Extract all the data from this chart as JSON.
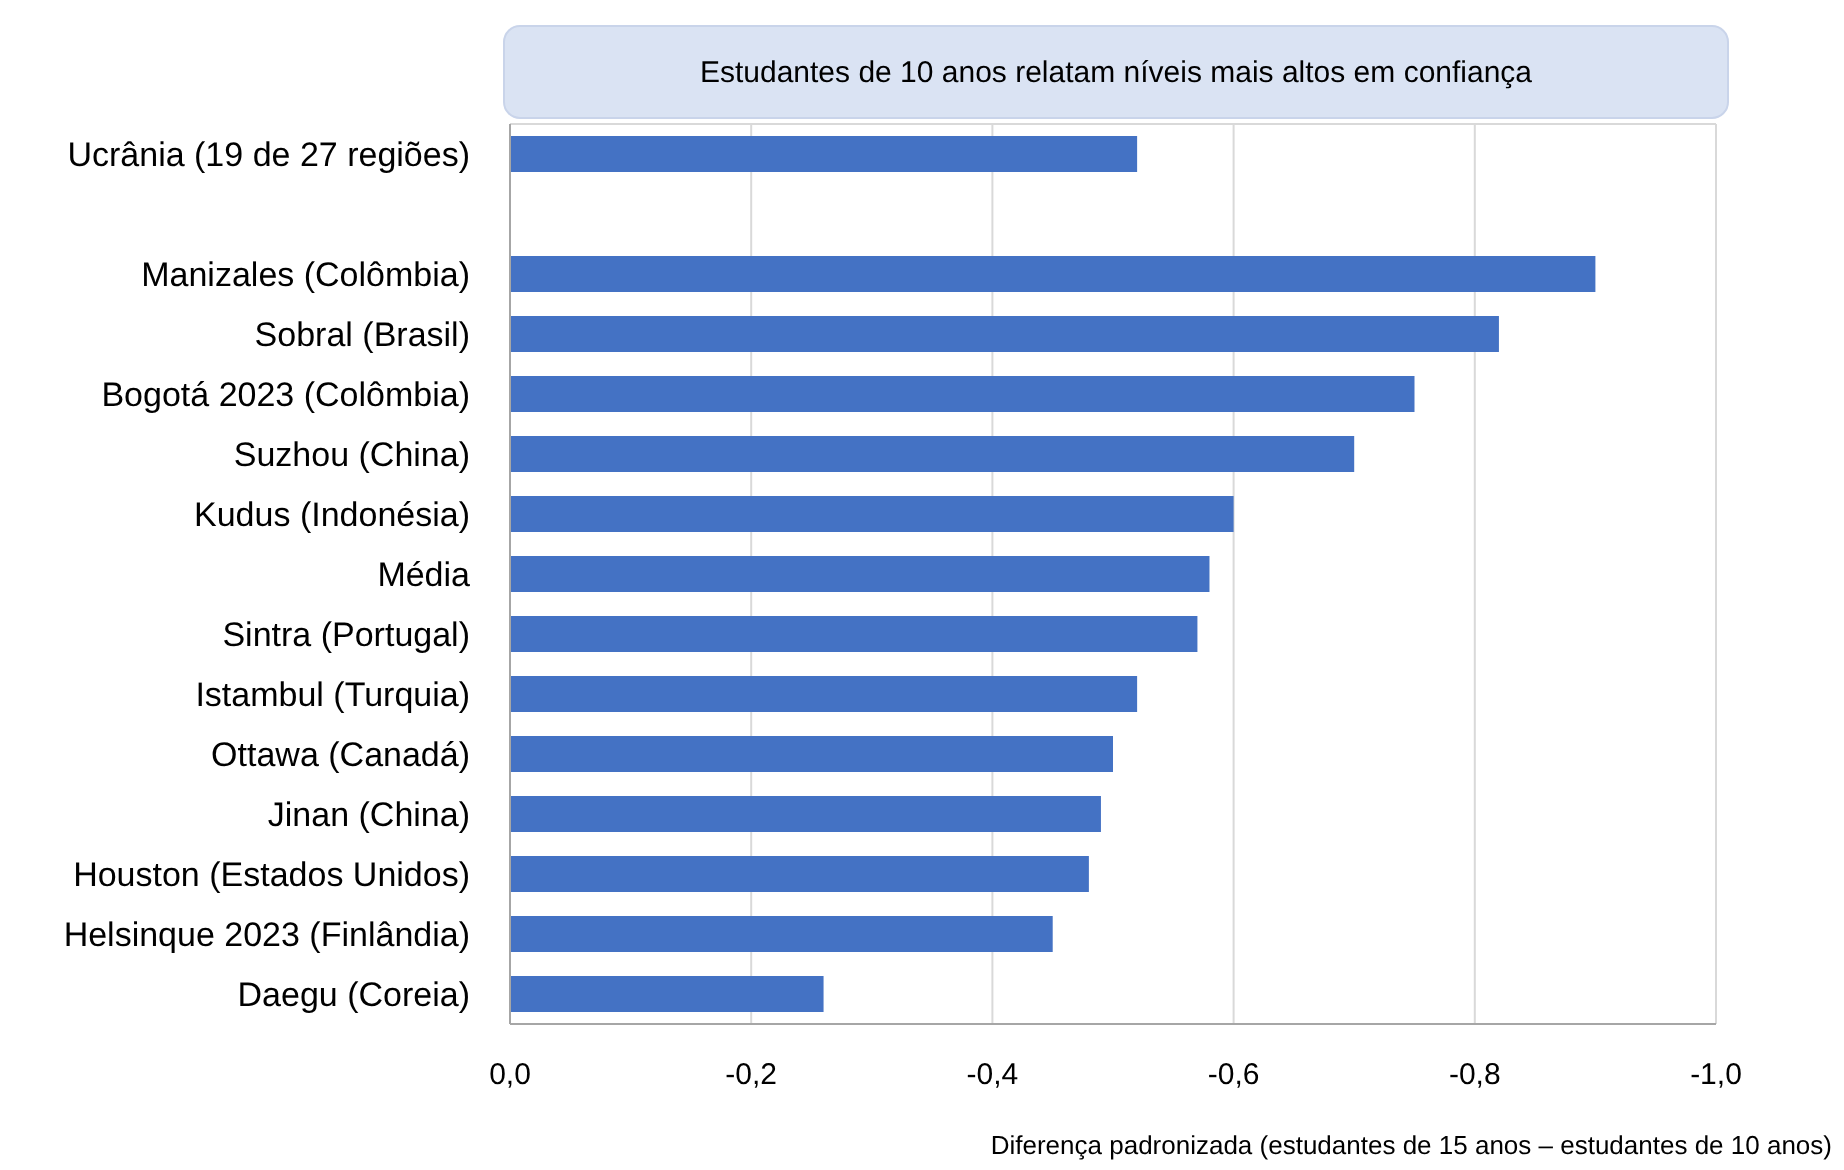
{
  "chart_data": {
    "type": "bar",
    "orientation": "horizontal",
    "title": "Estudantes de 10 anos relatam níveis mais altos em confiança",
    "xlabel": "Diferença padronizada (estudantes de 15 anos – estudantes de 10 anos)",
    "categories": [
      "Ucrânia (19 de 27 regiões)",
      null,
      "Manizales (Colômbia)",
      "Sobral (Brasil)",
      "Bogotá 2023 (Colômbia)",
      "Suzhou (China)",
      "Kudus (Indonésia)",
      "Média",
      "Sintra (Portugal)",
      "Istambul (Turquia)",
      "Ottawa (Canadá)",
      "Jinan (China)",
      "Houston (Estados Unidos)",
      "Helsinque 2023 (Finlândia)",
      "Daegu (Coreia)"
    ],
    "values": [
      -0.52,
      null,
      -0.9,
      -0.82,
      -0.75,
      -0.7,
      -0.6,
      -0.58,
      -0.57,
      -0.52,
      -0.5,
      -0.49,
      -0.48,
      -0.45,
      -0.26
    ],
    "color": "#4472c4",
    "xlim": [
      0,
      -1
    ],
    "xticks": [
      {
        "value": 0,
        "label": "0,0"
      },
      {
        "value": -0.2,
        "label": "-0,2"
      },
      {
        "value": -0.4,
        "label": "-0,4"
      },
      {
        "value": -0.6,
        "label": "-0,6"
      },
      {
        "value": -0.8,
        "label": "-0,8"
      },
      {
        "value": -1,
        "label": "-1,0"
      }
    ],
    "grid": "x"
  }
}
